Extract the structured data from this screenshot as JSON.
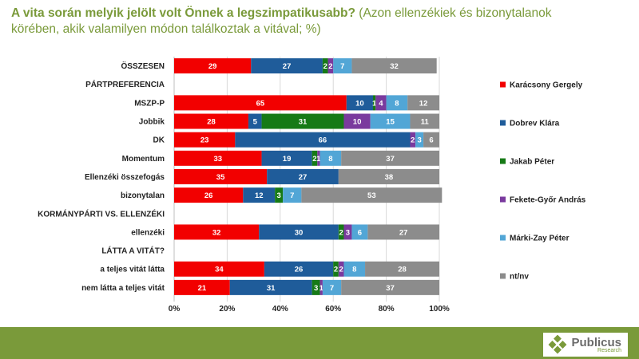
{
  "header": {
    "title": "A vita során melyik jelölt volt Önnek a legszimpatikusabb?",
    "subtitle": "(Azon ellenzékiek és bizonytalanok körében, akik valamilyen módon találkoztak a vitával; %)"
  },
  "logo": {
    "name": "Publicus",
    "sub": "Research"
  },
  "colors": {
    "karacsony": "#f20000",
    "dobrev": "#1f5c9a",
    "jakab": "#167a16",
    "fekete": "#7a3a9e",
    "markizay": "#52a6d6",
    "ntnv": "#8c8c8c",
    "accent": "#7a9a3a"
  },
  "chart_data": {
    "type": "bar",
    "orientation": "horizontal",
    "stacked": true,
    "xlim": [
      0,
      100
    ],
    "xticks": [
      "0%",
      "20%",
      "40%",
      "60%",
      "80%",
      "100%"
    ],
    "legend_position": "right",
    "series": [
      {
        "name": "Karácsony Gergely",
        "color_key": "karacsony"
      },
      {
        "name": "Dobrev Klára",
        "color_key": "dobrev"
      },
      {
        "name": "Jakab Péter",
        "color_key": "jakab"
      },
      {
        "name": "Fekete-Győr András",
        "color_key": "fekete"
      },
      {
        "name": "Márki-Zay Péter",
        "color_key": "markizay"
      },
      {
        "name": "nt/nv",
        "color_key": "ntnv"
      }
    ],
    "rows": [
      {
        "label": "ÖSSZESEN",
        "values": [
          29,
          27,
          2,
          2,
          7,
          32
        ],
        "labels": [
          "29",
          "27",
          "2",
          "2",
          "7",
          "32"
        ]
      },
      {
        "label": "PÁRTPREFERENCIA",
        "header": true
      },
      {
        "label": "MSZP-P",
        "values": [
          65,
          10,
          1,
          4,
          8,
          12
        ],
        "labels": [
          "65",
          "10",
          "1",
          "4",
          "8",
          "12"
        ]
      },
      {
        "label": "Jobbik",
        "values": [
          28,
          5,
          31,
          10,
          15,
          11
        ],
        "labels": [
          "28",
          "5",
          "31",
          "10",
          "15",
          "11"
        ]
      },
      {
        "label": "DK",
        "values": [
          23,
          66,
          0,
          2,
          3,
          6
        ],
        "labels": [
          "23",
          "66",
          "",
          "2",
          "3",
          "6"
        ]
      },
      {
        "label": "Momentum",
        "values": [
          33,
          19,
          2,
          1,
          8,
          37
        ],
        "labels": [
          "33",
          "19",
          "2",
          "1",
          "8",
          "37"
        ]
      },
      {
        "label": "Ellenzéki összefogás",
        "values": [
          35,
          27,
          0,
          0,
          0,
          38
        ],
        "labels": [
          "35",
          "27",
          "",
          "",
          "",
          "38"
        ]
      },
      {
        "label": "bizonytalan",
        "values": [
          26,
          12,
          3,
          0,
          7,
          53
        ],
        "labels": [
          "26",
          "12",
          "3",
          "",
          "7",
          "53"
        ]
      },
      {
        "label": "KORMÁNYPÁRTI VS. ELLENZÉKI",
        "header": true
      },
      {
        "label": "ellenzéki",
        "values": [
          32,
          30,
          2,
          3,
          6,
          27
        ],
        "labels": [
          "32",
          "30",
          "2",
          "3",
          "6",
          "27"
        ]
      },
      {
        "label": "LÁTTA A VITÁT?",
        "header": true
      },
      {
        "label": "a teljes vitát látta",
        "values": [
          34,
          26,
          2,
          2,
          8,
          28
        ],
        "labels": [
          "34",
          "26",
          "2",
          "2",
          "8",
          "28"
        ]
      },
      {
        "label": "nem látta a teljes vitát",
        "values": [
          21,
          31,
          3,
          1,
          7,
          37
        ],
        "labels": [
          "21",
          "31",
          "3",
          "1",
          "7",
          "37"
        ]
      }
    ]
  }
}
